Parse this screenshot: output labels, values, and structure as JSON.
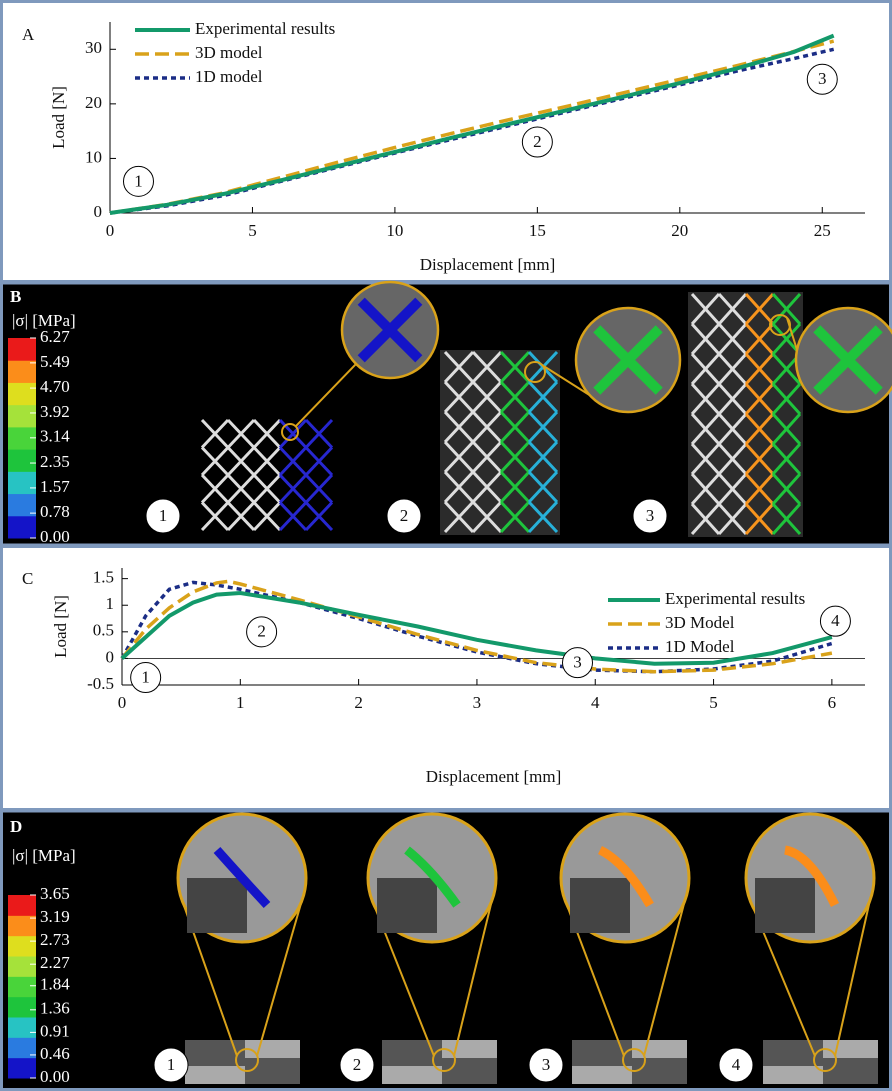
{
  "chart_data": [
    {
      "type": "line",
      "panel_letter": "A",
      "xlabel": "Displacement [mm]",
      "ylabel": "Load [N]",
      "xlim": [
        0,
        26.5
      ],
      "ylim": [
        0,
        35
      ],
      "xticks": [
        0,
        5,
        10,
        15,
        20,
        25
      ],
      "yticks": [
        0,
        10,
        20,
        30
      ],
      "annotations": [
        "1",
        "2",
        "3"
      ],
      "series": [
        {
          "name": "Experimental results",
          "color": "#13996a",
          "line_style": "solid",
          "x": [
            0,
            2,
            4,
            6,
            8,
            10,
            12,
            14,
            16,
            18,
            20,
            22,
            24,
            25.4
          ],
          "values": [
            0,
            1.5,
            3.5,
            6,
            8.6,
            11.2,
            13.8,
            16.3,
            18.8,
            21.3,
            23.8,
            26.5,
            29.5,
            32.5
          ]
        },
        {
          "name": "3D model",
          "color": "#d9a21a",
          "line_style": "dashed",
          "x": [
            0,
            2,
            4,
            6,
            8,
            10,
            12,
            14,
            16,
            18,
            20,
            22,
            24,
            25.4
          ],
          "values": [
            0,
            1.6,
            3.7,
            6.5,
            9.3,
            12,
            14.6,
            17.1,
            19.5,
            22,
            24.5,
            27,
            29.6,
            31.5
          ]
        },
        {
          "name": "1D model",
          "color": "#1b2d86",
          "line_style": "dotted",
          "x": [
            0,
            2,
            4,
            6,
            8,
            10,
            12,
            14,
            16,
            18,
            20,
            22,
            24,
            25.4
          ],
          "values": [
            0,
            1.3,
            3.2,
            5.8,
            8.4,
            11,
            13.5,
            16,
            18.5,
            21,
            23.5,
            26,
            28.3,
            30
          ]
        }
      ]
    },
    {
      "type": "line",
      "panel_letter": "C",
      "xlabel": "Displacement [mm]",
      "ylabel": "Load [N]",
      "xlim": [
        0,
        6.28
      ],
      "ylim": [
        -0.5,
        1.7
      ],
      "xticks": [
        0,
        1,
        2,
        3,
        4,
        5,
        6
      ],
      "yticks": [
        -0.5,
        0,
        0.5,
        1,
        1.5
      ],
      "annotations": [
        "1",
        "2",
        "3",
        "4"
      ],
      "series": [
        {
          "name": "Experimental results",
          "color": "#13996a",
          "line_style": "solid",
          "x": [
            0,
            0.2,
            0.4,
            0.6,
            0.8,
            1,
            1.5,
            2,
            2.5,
            3,
            3.5,
            4,
            4.5,
            5,
            5.5,
            6
          ],
          "values": [
            0,
            0.4,
            0.8,
            1.05,
            1.2,
            1.23,
            1.05,
            0.82,
            0.6,
            0.35,
            0.15,
            0,
            -0.1,
            -0.08,
            0.1,
            0.4
          ]
        },
        {
          "name": "3D Model",
          "color": "#d9a21a",
          "line_style": "dashed",
          "x": [
            0,
            0.2,
            0.4,
            0.6,
            0.8,
            0.9,
            1,
            1.5,
            2,
            2.5,
            3,
            3.5,
            4,
            4.5,
            5,
            5.5,
            6
          ],
          "values": [
            0,
            0.55,
            0.95,
            1.25,
            1.42,
            1.45,
            1.4,
            1.1,
            0.78,
            0.45,
            0.15,
            -0.08,
            -0.2,
            -0.25,
            -0.22,
            -0.1,
            0.1
          ]
        },
        {
          "name": "1D Model",
          "color": "#1b2d86",
          "line_style": "dotted",
          "x": [
            0,
            0.2,
            0.4,
            0.6,
            0.8,
            1,
            1.5,
            2,
            2.5,
            3,
            3.5,
            4,
            4.5,
            5,
            5.5,
            6
          ],
          "values": [
            0,
            0.8,
            1.3,
            1.43,
            1.38,
            1.3,
            1.05,
            0.75,
            0.42,
            0.12,
            -0.1,
            -0.22,
            -0.25,
            -0.2,
            -0.05,
            0.28
          ]
        }
      ]
    }
  ],
  "panel_b": {
    "letter": "B",
    "colorbar_title": "|σ| [MPa]",
    "colorbar_lim": [
      0,
      6.27
    ],
    "colorbar_ticks": [
      {
        "value": 0,
        "label": "0.00"
      },
      0.78,
      1.57,
      2.35,
      3.14,
      3.92,
      {
        "value": 4.7,
        "label": "4.70"
      },
      5.49,
      6.27
    ],
    "colorbar_colors": [
      "#1414c8",
      "#2a7be0",
      "#27c3c3",
      "#1ec43c",
      "#49d43a",
      "#a5e23a",
      "#dede1e",
      "#fb8d1a",
      "#ea1a1a"
    ],
    "stages": [
      "1",
      "2",
      "3"
    ]
  },
  "panel_d": {
    "letter": "D",
    "colorbar_title": "|σ| [MPa]",
    "colorbar_lim": [
      0,
      3.65
    ],
    "colorbar_ticks": [
      {
        "value": 0,
        "label": "0.00"
      },
      0.46,
      0.91,
      1.36,
      1.84,
      2.27,
      2.73,
      3.19,
      3.65
    ],
    "colorbar_colors": [
      "#1414c8",
      "#2a7be0",
      "#27c3c3",
      "#1ec43c",
      "#49d43a",
      "#a5e23a",
      "#dede1e",
      "#fb8d1a",
      "#ea1a1a"
    ],
    "stages": [
      "1",
      "2",
      "3",
      "4"
    ]
  }
}
